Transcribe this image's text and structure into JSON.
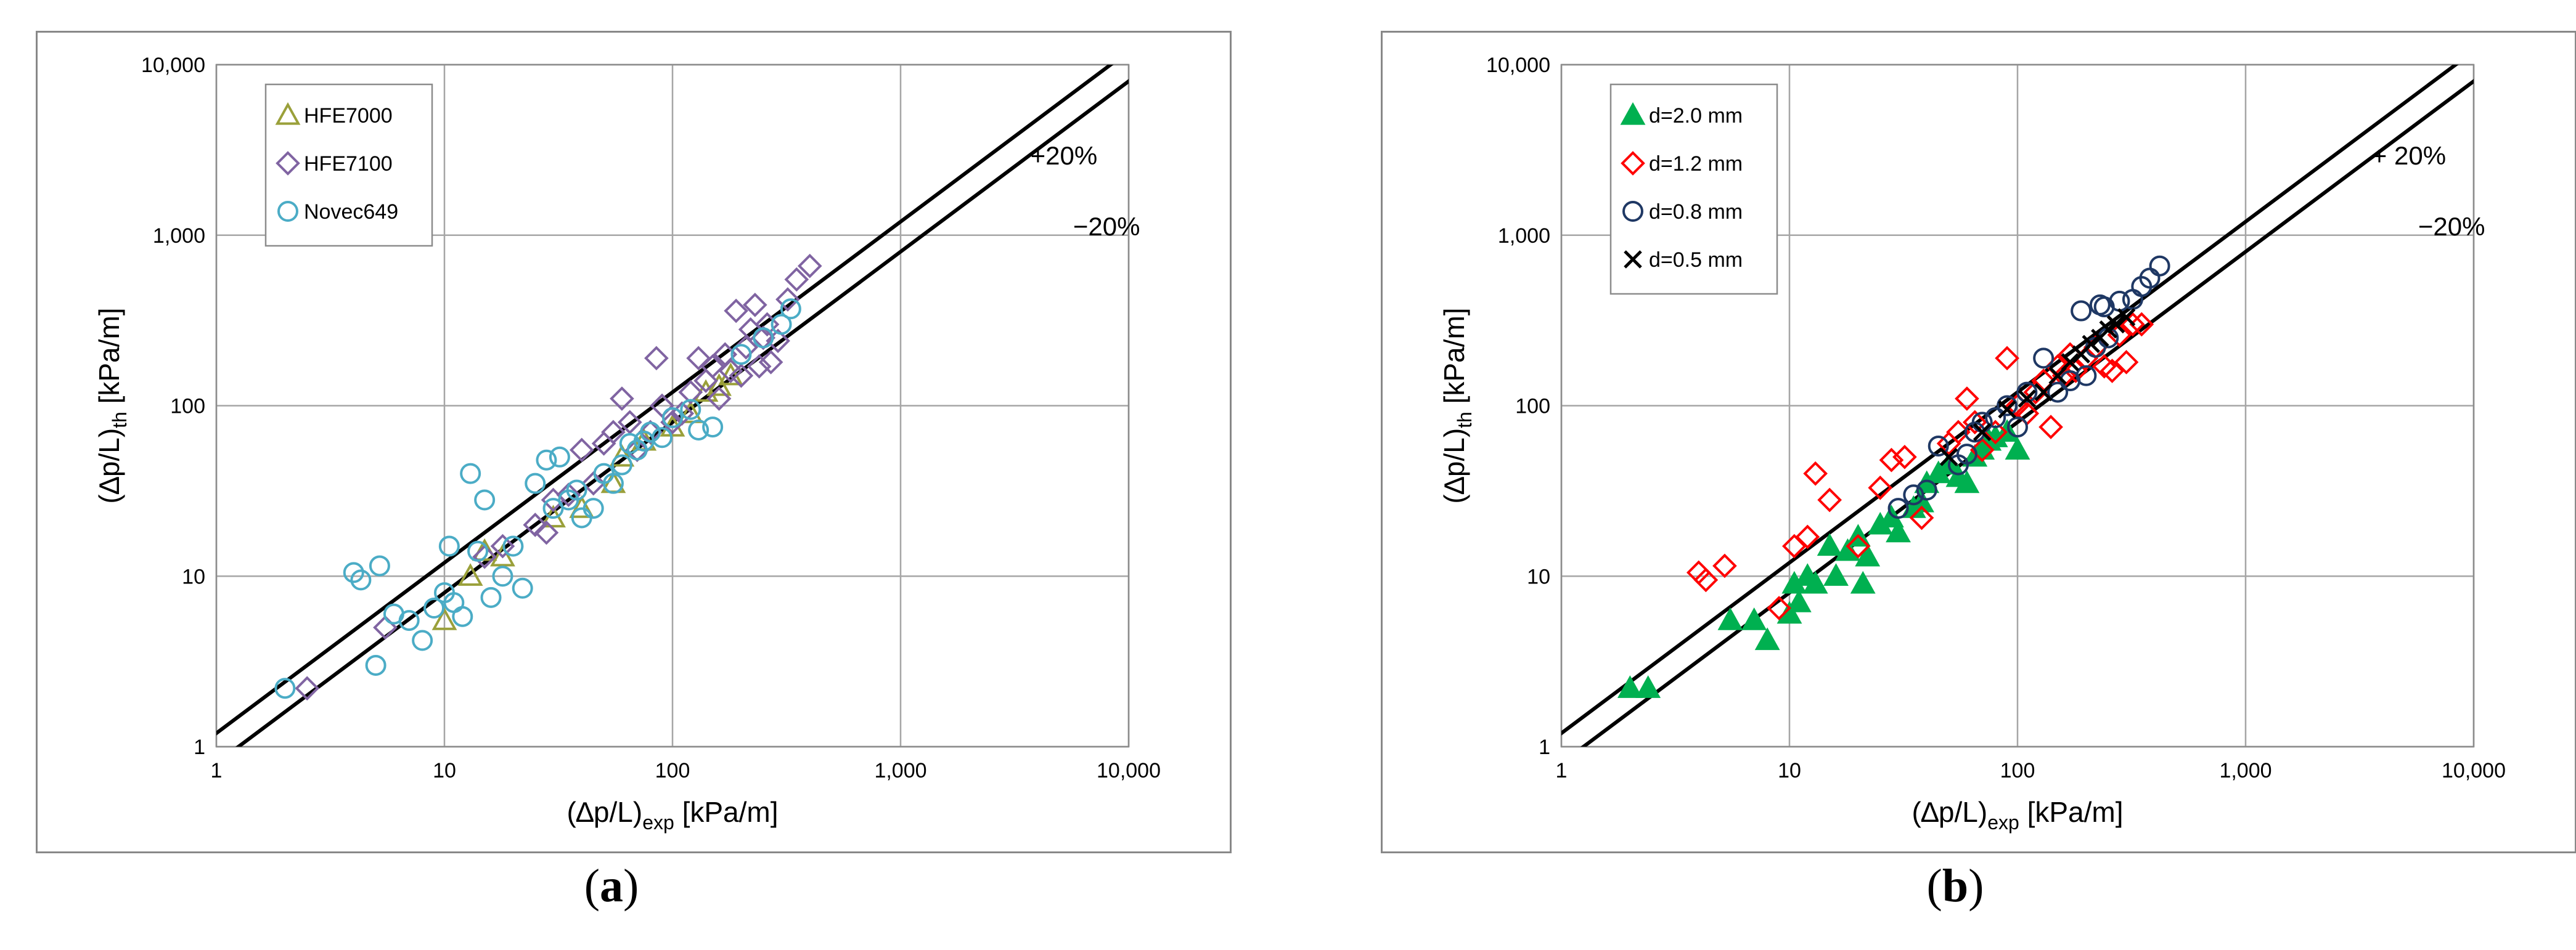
{
  "captions": {
    "a": "a",
    "b": "b"
  },
  "chart_data": [
    {
      "type": "scatter",
      "panel": "a",
      "x_scale": "log",
      "y_scale": "log",
      "xlim": [
        1,
        10000
      ],
      "ylim": [
        1,
        10000
      ],
      "xlabel": {
        "main": "(∆p/L)",
        "sub": "exp",
        "unit": " [kPa/m]"
      },
      "ylabel": {
        "main": "(∆p/L)",
        "sub": "th",
        "unit": " [kPa/m]"
      },
      "xticks": [
        "1",
        "10",
        "100",
        "1,000",
        "10,000"
      ],
      "yticks": [
        "1",
        "10",
        "100",
        "1,000",
        "10,000"
      ],
      "grid": true,
      "legend_position": "top-left",
      "band_lines": [
        {
          "label": "+20%",
          "factor": 1.2
        },
        {
          "label": "−20%",
          "factor": 0.8
        }
      ],
      "series": [
        {
          "name": "HFE7000",
          "marker": "triangle-open",
          "color": "#9aa03a",
          "points": [
            [
              10,
              5.5
            ],
            [
              13,
              10
            ],
            [
              15,
              14
            ],
            [
              18,
              13
            ],
            [
              30,
              22
            ],
            [
              40,
              25
            ],
            [
              55,
              35
            ],
            [
              60,
              50
            ],
            [
              75,
              62
            ],
            [
              100,
              75
            ],
            [
              120,
              90
            ],
            [
              140,
              120
            ],
            [
              160,
              130
            ],
            [
              180,
              150
            ]
          ]
        },
        {
          "name": "HFE7100",
          "marker": "diamond-open",
          "color": "#8064a2",
          "points": [
            [
              2.5,
              2.2
            ],
            [
              5.5,
              5
            ],
            [
              15,
              13
            ],
            [
              18,
              15
            ],
            [
              25,
              20
            ],
            [
              28,
              18
            ],
            [
              30,
              28
            ],
            [
              35,
              30
            ],
            [
              40,
              55
            ],
            [
              45,
              35
            ],
            [
              50,
              60
            ],
            [
              55,
              70
            ],
            [
              60,
              110
            ],
            [
              65,
              80
            ],
            [
              70,
              55
            ],
            [
              80,
              70
            ],
            [
              85,
              190
            ],
            [
              90,
              100
            ],
            [
              100,
              80
            ],
            [
              110,
              90
            ],
            [
              120,
              120
            ],
            [
              130,
              190
            ],
            [
              140,
              140
            ],
            [
              150,
              170
            ],
            [
              160,
              110
            ],
            [
              170,
              200
            ],
            [
              180,
              160
            ],
            [
              190,
              360
            ],
            [
              200,
              150
            ],
            [
              210,
              220
            ],
            [
              220,
              280
            ],
            [
              230,
              390
            ],
            [
              240,
              170
            ],
            [
              250,
              250
            ],
            [
              260,
              300
            ],
            [
              270,
              180
            ],
            [
              290,
              240
            ],
            [
              320,
              420
            ],
            [
              350,
              550
            ],
            [
              400,
              660
            ]
          ]
        },
        {
          "name": "Novec649",
          "marker": "circle-open",
          "color": "#4bacc6",
          "points": [
            [
              2,
              2.2
            ],
            [
              4,
              10.5
            ],
            [
              4.3,
              9.5
            ],
            [
              5,
              3
            ],
            [
              5.2,
              11.5
            ],
            [
              6,
              6
            ],
            [
              7,
              5.5
            ],
            [
              8,
              4.2
            ],
            [
              9,
              6.5
            ],
            [
              10,
              8
            ],
            [
              10.5,
              15
            ],
            [
              11,
              7
            ],
            [
              12,
              5.8
            ],
            [
              13,
              40
            ],
            [
              14,
              14
            ],
            [
              15,
              28
            ],
            [
              16,
              7.5
            ],
            [
              18,
              10
            ],
            [
              20,
              15
            ],
            [
              22,
              8.5
            ],
            [
              25,
              35
            ],
            [
              28,
              48
            ],
            [
              30,
              25
            ],
            [
              32,
              50
            ],
            [
              35,
              28
            ],
            [
              38,
              32
            ],
            [
              40,
              22
            ],
            [
              45,
              25
            ],
            [
              50,
              40
            ],
            [
              55,
              35
            ],
            [
              60,
              45
            ],
            [
              65,
              60
            ],
            [
              70,
              55
            ],
            [
              75,
              62
            ],
            [
              80,
              70
            ],
            [
              90,
              65
            ],
            [
              100,
              85
            ],
            [
              120,
              95
            ],
            [
              130,
              72
            ],
            [
              150,
              75
            ],
            [
              200,
              200
            ],
            [
              250,
              250
            ],
            [
              300,
              300
            ],
            [
              330,
              370
            ]
          ]
        }
      ]
    },
    {
      "type": "scatter",
      "panel": "b",
      "x_scale": "log",
      "y_scale": "log",
      "xlim": [
        1,
        10000
      ],
      "ylim": [
        1,
        10000
      ],
      "xlabel": {
        "main": "(∆p/L)",
        "sub": "exp",
        "unit": " [kPa/m]"
      },
      "ylabel": {
        "main": "(∆p/L)",
        "sub": "th",
        "unit": " [kPa/m]"
      },
      "xticks": [
        "1",
        "10",
        "100",
        "1,000",
        "10,000"
      ],
      "yticks": [
        "1",
        "10",
        "100",
        "1,000",
        "10,000"
      ],
      "grid": true,
      "legend_position": "top-left",
      "band_lines": [
        {
          "label": "+ 20%",
          "factor": 1.2
        },
        {
          "label": "−20%",
          "factor": 0.8
        }
      ],
      "series": [
        {
          "name": "d=2.0 mm",
          "marker": "triangle-filled",
          "color": "#00b050",
          "points": [
            [
              2,
              2.2
            ],
            [
              2.4,
              2.2
            ],
            [
              5.5,
              5.5
            ],
            [
              7,
              5.5
            ],
            [
              8,
              4.2
            ],
            [
              10,
              6
            ],
            [
              10.5,
              9
            ],
            [
              11,
              7
            ],
            [
              12,
              10
            ],
            [
              13,
              9
            ],
            [
              15,
              15
            ],
            [
              16,
              10
            ],
            [
              18,
              14
            ],
            [
              20,
              17
            ],
            [
              21,
              9
            ],
            [
              22,
              13
            ],
            [
              25,
              20
            ],
            [
              28,
              22
            ],
            [
              30,
              18
            ],
            [
              35,
              25
            ],
            [
              38,
              27
            ],
            [
              40,
              35
            ],
            [
              45,
              40
            ],
            [
              50,
              45
            ],
            [
              55,
              38
            ],
            [
              60,
              35
            ],
            [
              65,
              50
            ],
            [
              70,
              55
            ],
            [
              75,
              62
            ],
            [
              80,
              65
            ],
            [
              90,
              70
            ],
            [
              100,
              55
            ]
          ]
        },
        {
          "name": "d=1.2 mm",
          "marker": "diamond-open",
          "color": "#ff0000",
          "points": [
            [
              4,
              10.5
            ],
            [
              4.3,
              9.5
            ],
            [
              5.2,
              11.5
            ],
            [
              9,
              6.5
            ],
            [
              10.5,
              15
            ],
            [
              12,
              17
            ],
            [
              13,
              40
            ],
            [
              15,
              28
            ],
            [
              20,
              15
            ],
            [
              25,
              33
            ],
            [
              28,
              48
            ],
            [
              32,
              50
            ],
            [
              38,
              22
            ],
            [
              50,
              60
            ],
            [
              55,
              70
            ],
            [
              60,
              110
            ],
            [
              65,
              80
            ],
            [
              70,
              55
            ],
            [
              80,
              70
            ],
            [
              90,
              190
            ],
            [
              100,
              100
            ],
            [
              110,
              90
            ],
            [
              120,
              120
            ],
            [
              130,
              140
            ],
            [
              140,
              75
            ],
            [
              150,
              170
            ],
            [
              160,
              150
            ],
            [
              170,
              200
            ],
            [
              180,
              160
            ],
            [
              200,
              190
            ],
            [
              220,
              220
            ],
            [
              240,
              170
            ],
            [
              260,
              160
            ],
            [
              280,
              260
            ],
            [
              300,
              180
            ],
            [
              320,
              300
            ],
            [
              350,
              300
            ]
          ]
        },
        {
          "name": "d=0.8 mm",
          "marker": "circle-open",
          "color": "#1f3864",
          "points": [
            [
              30,
              25
            ],
            [
              35,
              30
            ],
            [
              40,
              32
            ],
            [
              45,
              58
            ],
            [
              55,
              45
            ],
            [
              60,
              52
            ],
            [
              65,
              70
            ],
            [
              70,
              80
            ],
            [
              80,
              85
            ],
            [
              90,
              100
            ],
            [
              100,
              75
            ],
            [
              110,
              120
            ],
            [
              130,
              190
            ],
            [
              150,
              120
            ],
            [
              170,
              140
            ],
            [
              190,
              360
            ],
            [
              200,
              150
            ],
            [
              220,
              220
            ],
            [
              230,
              390
            ],
            [
              240,
              380
            ],
            [
              250,
              250
            ],
            [
              280,
              410
            ],
            [
              320,
              420
            ],
            [
              350,
              500
            ],
            [
              380,
              560
            ],
            [
              420,
              660
            ]
          ]
        },
        {
          "name": "d=0.5 mm",
          "marker": "cross",
          "color": "#000000",
          "points": [
            [
              50,
              50
            ],
            [
              70,
              70
            ],
            [
              90,
              95
            ],
            [
              110,
              110
            ],
            [
              130,
              120
            ],
            [
              150,
              150
            ],
            [
              170,
              180
            ],
            [
              190,
              200
            ],
            [
              210,
              230
            ],
            [
              230,
              250
            ],
            [
              250,
              280
            ],
            [
              270,
              300
            ],
            [
              300,
              330
            ]
          ]
        }
      ]
    }
  ]
}
